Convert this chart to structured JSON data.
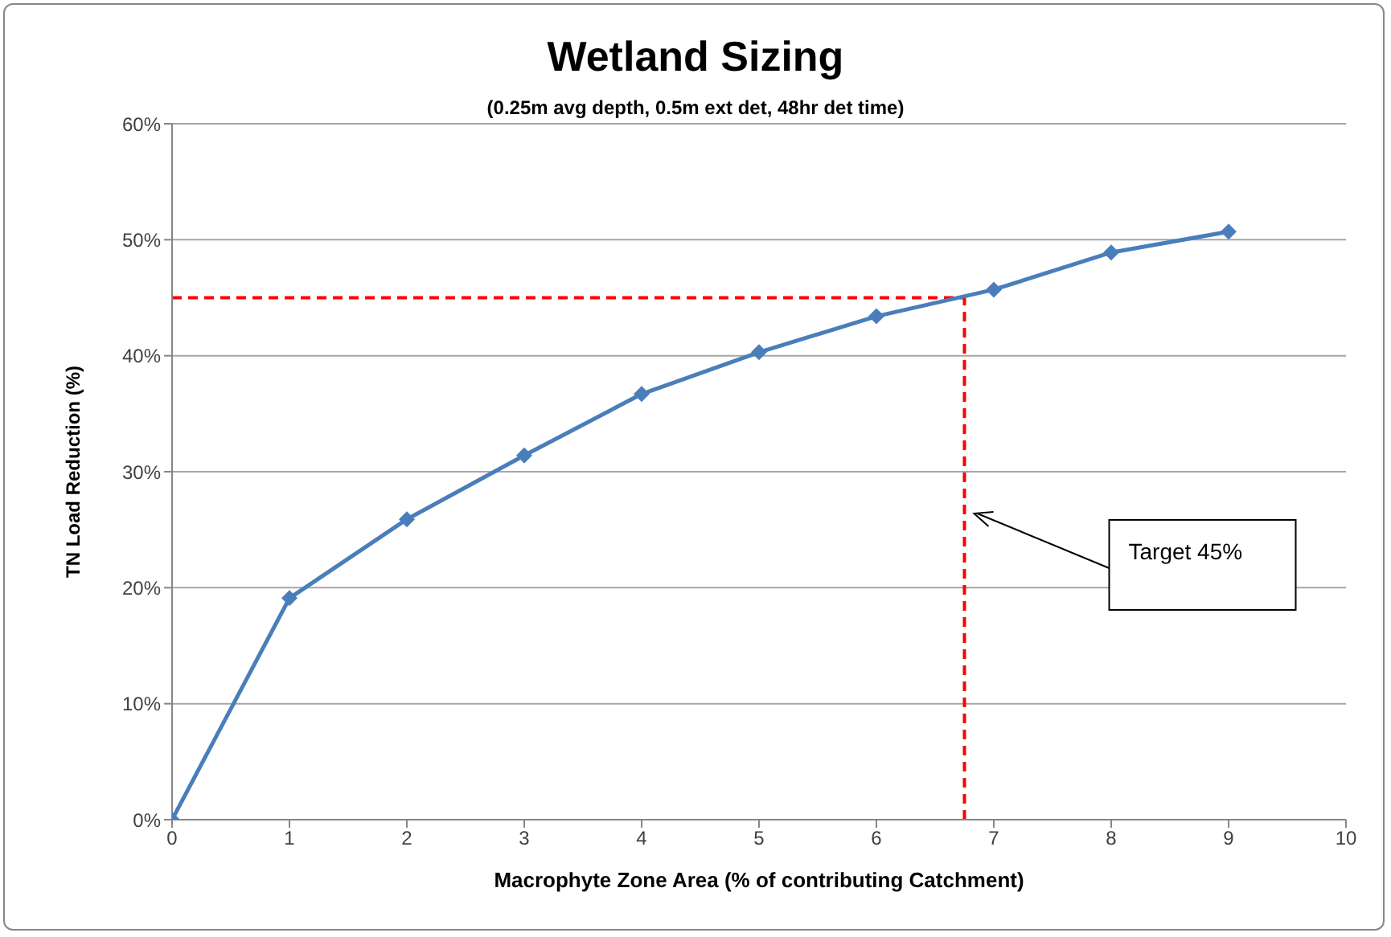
{
  "chart_data": {
    "type": "line",
    "title": "Wetland Sizing",
    "subtitle": "(0.25m avg depth, 0.5m ext det, 48hr det time)",
    "xlabel": "Macrophyte Zone Area (% of contributing  Catchment)",
    "ylabel": "TN Load Reduction (%)",
    "x": [
      0,
      1,
      2,
      3,
      4,
      5,
      6,
      7,
      8,
      9
    ],
    "series": [
      {
        "color": "#4a7ebb",
        "values": [
          0,
          19.1,
          25.9,
          31.4,
          36.7,
          40.3,
          43.4,
          45.7,
          48.9,
          50.7
        ]
      }
    ],
    "xlim": [
      0,
      10
    ],
    "xticks": [
      0,
      1,
      2,
      3,
      4,
      5,
      6,
      7,
      8,
      9,
      10
    ],
    "ylim": [
      0,
      60
    ],
    "yticks": [
      {
        "value": 0,
        "label": "0%"
      },
      {
        "value": 10,
        "label": "10%"
      },
      {
        "value": 20,
        "label": "20%"
      },
      {
        "value": 30,
        "label": "30%"
      },
      {
        "value": 40,
        "label": "40%"
      },
      {
        "value": 50,
        "label": "50%"
      },
      {
        "value": 60,
        "label": "60%"
      }
    ],
    "grid": "y",
    "marker": "diamond",
    "line_style": "solid",
    "legend": false,
    "ref_lines": [
      {
        "axis": "y",
        "value": 45,
        "color": "#ff0000",
        "line_style": "dashed"
      },
      {
        "axis": "x",
        "value": 6.75,
        "color": "#ff0000",
        "line_style": "dashed"
      }
    ],
    "annotations": [
      "Target 45%"
    ]
  }
}
